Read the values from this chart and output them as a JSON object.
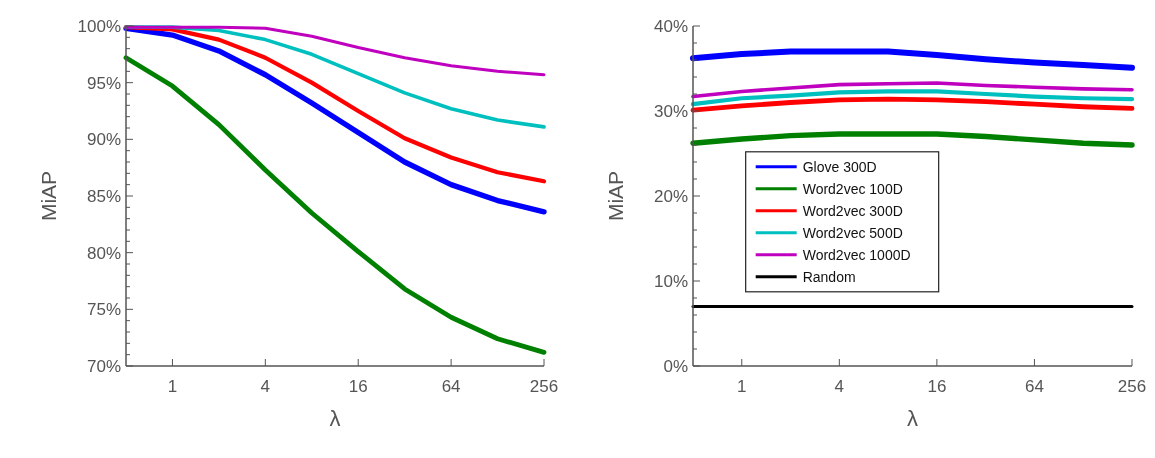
{
  "chart_data": [
    {
      "type": "line",
      "xlabel": "λ",
      "ylabel": "MiAP",
      "log": "x",
      "xlim": [
        0.5,
        256
      ],
      "ylim": [
        70,
        100
      ],
      "xticks": [
        1,
        4,
        16,
        64,
        256
      ],
      "yticks": [
        {
          "value": 70,
          "label": "70%"
        },
        {
          "value": 71,
          "label": null
        },
        {
          "value": 72,
          "label": null
        },
        {
          "value": 73,
          "label": null
        },
        {
          "value": 74,
          "label": null
        },
        {
          "value": 75,
          "label": "75%"
        },
        {
          "value": 76,
          "label": null
        },
        {
          "value": 77,
          "label": null
        },
        {
          "value": 78,
          "label": null
        },
        {
          "value": 79,
          "label": null
        },
        {
          "value": 80,
          "label": "80%"
        },
        {
          "value": 81,
          "label": null
        },
        {
          "value": 82,
          "label": null
        },
        {
          "value": 83,
          "label": null
        },
        {
          "value": 84,
          "label": null
        },
        {
          "value": 85,
          "label": "85%"
        },
        {
          "value": 86,
          "label": null
        },
        {
          "value": 87,
          "label": null
        },
        {
          "value": 88,
          "label": null
        },
        {
          "value": 89,
          "label": null
        },
        {
          "value": 90,
          "label": "90%"
        },
        {
          "value": 91,
          "label": null
        },
        {
          "value": 92,
          "label": null
        },
        {
          "value": 93,
          "label": null
        },
        {
          "value": 94,
          "label": null
        },
        {
          "value": 95,
          "label": "95%"
        },
        {
          "value": 96,
          "label": null
        },
        {
          "value": 97,
          "label": null
        },
        {
          "value": 98,
          "label": null
        },
        {
          "value": 99,
          "label": null
        },
        {
          "value": 100,
          "label": "100%"
        }
      ],
      "x": [
        0.5,
        1,
        2,
        4,
        8,
        16,
        32,
        64,
        128,
        256
      ],
      "legend": false,
      "series": [
        {
          "color": "#0000ff",
          "values": [
            99.8,
            99.2,
            97.8,
            95.7,
            93.2,
            90.6,
            88.0,
            86.0,
            84.6,
            83.6
          ]
        },
        {
          "color": "#008000",
          "values": [
            97.2,
            94.7,
            91.3,
            87.3,
            83.5,
            80.1,
            76.8,
            74.3,
            72.4,
            71.2
          ]
        },
        {
          "color": "#ff0000",
          "values": [
            99.9,
            99.7,
            98.8,
            97.2,
            95.0,
            92.5,
            90.1,
            88.4,
            87.1,
            86.3
          ]
        },
        {
          "color": "#00bfbf",
          "values": [
            99.9,
            99.9,
            99.6,
            98.8,
            97.5,
            95.8,
            94.1,
            92.7,
            91.7,
            91.1
          ]
        },
        {
          "color": "#bf00bf",
          "values": [
            99.9,
            99.9,
            99.9,
            99.8,
            99.1,
            98.1,
            97.2,
            96.5,
            96.0,
            95.7
          ]
        }
      ]
    },
    {
      "type": "line",
      "xlabel": "λ",
      "ylabel": "MiAP",
      "log": "x",
      "xlim": [
        0.5,
        256
      ],
      "ylim": [
        0,
        40
      ],
      "xticks": [
        1,
        4,
        16,
        64,
        256
      ],
      "yticks": [
        {
          "value": 0,
          "label": "0%"
        },
        {
          "value": 2,
          "label": null
        },
        {
          "value": 4,
          "label": null
        },
        {
          "value": 6,
          "label": null
        },
        {
          "value": 8,
          "label": null
        },
        {
          "value": 10,
          "label": "10%"
        },
        {
          "value": 12,
          "label": null
        },
        {
          "value": 14,
          "label": null
        },
        {
          "value": 16,
          "label": null
        },
        {
          "value": 18,
          "label": null
        },
        {
          "value": 20,
          "label": "20%"
        },
        {
          "value": 22,
          "label": null
        },
        {
          "value": 24,
          "label": null
        },
        {
          "value": 26,
          "label": null
        },
        {
          "value": 28,
          "label": null
        },
        {
          "value": 30,
          "label": "30%"
        },
        {
          "value": 32,
          "label": null
        },
        {
          "value": 34,
          "label": null
        },
        {
          "value": 36,
          "label": null
        },
        {
          "value": 38,
          "label": null
        },
        {
          "value": 40,
          "label": "40%"
        }
      ],
      "x": [
        0.5,
        1,
        2,
        4,
        8,
        16,
        32,
        64,
        128,
        256
      ],
      "legend": "center left",
      "series": [
        {
          "name": "Glove 300D",
          "color": "#0000ff",
          "values": [
            36.2,
            36.7,
            37.0,
            37.0,
            37.0,
            36.6,
            36.1,
            35.7,
            35.4,
            35.1
          ]
        },
        {
          "name": "Word2vec 100D",
          "color": "#008000",
          "values": [
            26.2,
            26.7,
            27.1,
            27.3,
            27.3,
            27.3,
            27.0,
            26.6,
            26.2,
            26.0
          ]
        },
        {
          "name": "Word2vec 300D",
          "color": "#ff0000",
          "values": [
            30.1,
            30.6,
            31.0,
            31.3,
            31.4,
            31.3,
            31.1,
            30.8,
            30.5,
            30.3
          ]
        },
        {
          "name": "Word2vec 500D",
          "color": "#00bfbf",
          "values": [
            30.8,
            31.5,
            31.8,
            32.2,
            32.3,
            32.3,
            32.0,
            31.7,
            31.5,
            31.4
          ]
        },
        {
          "name": "Word2vec 1000D",
          "color": "#bf00bf",
          "values": [
            31.7,
            32.3,
            32.7,
            33.1,
            33.2,
            33.3,
            33.0,
            32.8,
            32.6,
            32.5
          ]
        },
        {
          "name": "Random",
          "color": "#000000",
          "x": [
            0.5,
            256
          ],
          "values": [
            7.0,
            7.0
          ]
        }
      ]
    }
  ]
}
